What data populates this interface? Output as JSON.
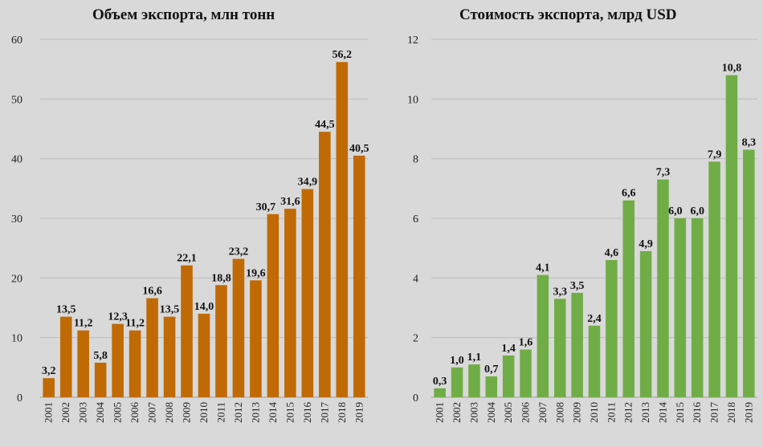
{
  "chart_data": [
    {
      "type": "bar",
      "title": "Объем экспорта,  млн тонн",
      "xlabel": "",
      "ylabel": "",
      "ylim": [
        0,
        60
      ],
      "yticks": [
        "0",
        "10",
        "20",
        "30",
        "40",
        "50",
        "60"
      ],
      "grid": true,
      "color": "#c06a06",
      "categories": [
        "2001",
        "2002",
        "2003",
        "2004",
        "2005",
        "2006",
        "2007",
        "2008",
        "2009",
        "2010",
        "2011",
        "2012",
        "2013",
        "2014",
        "2015",
        "2016",
        "2017",
        "2018",
        "2019"
      ],
      "values": [
        3.2,
        13.5,
        11.2,
        5.8,
        12.3,
        11.2,
        16.6,
        13.5,
        22.1,
        14.0,
        18.8,
        23.2,
        19.6,
        30.7,
        31.6,
        34.9,
        44.5,
        56.2,
        40.5
      ],
      "labels": [
        "3,2",
        "13,5",
        "11,2",
        "5,8",
        "12,3",
        "11,2",
        "16,6",
        "13,5",
        "22,1",
        "14,0",
        "18,8",
        "23,2",
        "19,6",
        "30,7",
        "31,6",
        "34,9",
        "44,5",
        "56,2",
        "40,5"
      ]
    },
    {
      "type": "bar",
      "title": "Стоимость  экспорта, млрд USD",
      "xlabel": "",
      "ylabel": "",
      "ylim": [
        0,
        12
      ],
      "yticks": [
        "0",
        "2",
        "4",
        "6",
        "8",
        "10",
        "12"
      ],
      "grid": true,
      "color": "#70ad47",
      "categories": [
        "2001",
        "2002",
        "2003",
        "2004",
        "2005",
        "2006",
        "2007",
        "2008",
        "2009",
        "2010",
        "2011",
        "2012",
        "2013",
        "2014",
        "2015",
        "2016",
        "2017",
        "2018",
        "2019"
      ],
      "values": [
        0.3,
        1.0,
        1.1,
        0.7,
        1.4,
        1.6,
        4.1,
        3.3,
        3.5,
        2.4,
        4.6,
        6.6,
        4.9,
        7.3,
        6.0,
        6.0,
        7.9,
        10.8,
        8.3
      ],
      "labels": [
        "0,3",
        "1,0",
        "1,1",
        "0,7",
        "1,4",
        "1,6",
        "4,1",
        "3,3",
        "3,5",
        "2,4",
        "4,6",
        "6,6",
        "4,9",
        "7,3",
        "6,0",
        "6,0",
        "7,9",
        "10,8",
        "8,3"
      ]
    }
  ]
}
